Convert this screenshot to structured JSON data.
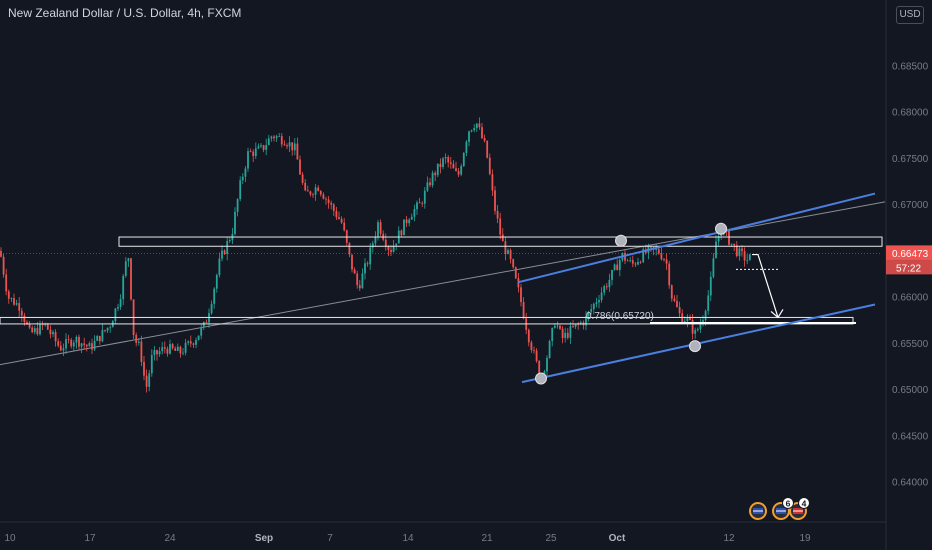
{
  "title": "New Zealand Dollar / U.S. Dollar, 4h, FXCM",
  "currency_button": "USD",
  "price_badge": "0.66473",
  "countdown_badge": "57:22",
  "fib_label": "0.786(0.65720)",
  "event_badges": [
    "6",
    "4"
  ],
  "colors": {
    "up": "#26a69a",
    "down": "#ef5350",
    "channel": "#4a7fe0",
    "background": "#131722"
  },
  "chart_data": {
    "type": "candlestick",
    "symbol": "NZDUSD",
    "timeframe": "4h",
    "y_ticks": [
      "0.68500",
      "0.68000",
      "0.67500",
      "0.67000",
      "0.66500",
      "0.66000",
      "0.65500",
      "0.65000",
      "0.64500",
      "0.64000"
    ],
    "x_ticks": [
      "10",
      "17",
      "24",
      "Sep",
      "7",
      "14",
      "21",
      "25",
      "Oct",
      "12",
      "19"
    ],
    "ylim": [
      0.6345,
      0.6905
    ],
    "last_price": 0.66473,
    "close_path": [
      [
        0,
        0.665
      ],
      [
        8,
        0.66
      ],
      [
        20,
        0.659
      ],
      [
        30,
        0.656
      ],
      [
        45,
        0.657
      ],
      [
        60,
        0.6545
      ],
      [
        75,
        0.6555
      ],
      [
        90,
        0.6545
      ],
      [
        110,
        0.657
      ],
      [
        120,
        0.66
      ],
      [
        128,
        0.665
      ],
      [
        134,
        0.6555
      ],
      [
        140,
        0.6545
      ],
      [
        146,
        0.65
      ],
      [
        152,
        0.6535
      ],
      [
        165,
        0.6545
      ],
      [
        180,
        0.654
      ],
      [
        195,
        0.6555
      ],
      [
        205,
        0.657
      ],
      [
        212,
        0.66
      ],
      [
        220,
        0.664
      ],
      [
        232,
        0.667
      ],
      [
        240,
        0.672
      ],
      [
        248,
        0.6755
      ],
      [
        262,
        0.676
      ],
      [
        272,
        0.6775
      ],
      [
        285,
        0.677
      ],
      [
        295,
        0.676
      ],
      [
        305,
        0.671
      ],
      [
        318,
        0.672
      ],
      [
        330,
        0.67
      ],
      [
        342,
        0.668
      ],
      [
        350,
        0.664
      ],
      [
        358,
        0.661
      ],
      [
        368,
        0.664
      ],
      [
        378,
        0.668
      ],
      [
        390,
        0.665
      ],
      [
        400,
        0.667
      ],
      [
        410,
        0.669
      ],
      [
        420,
        0.67
      ],
      [
        432,
        0.673
      ],
      [
        445,
        0.675
      ],
      [
        458,
        0.673
      ],
      [
        468,
        0.678
      ],
      [
        476,
        0.679
      ],
      [
        486,
        0.676
      ],
      [
        494,
        0.67
      ],
      [
        502,
        0.666
      ],
      [
        510,
        0.664
      ],
      [
        520,
        0.66
      ],
      [
        528,
        0.656
      ],
      [
        536,
        0.653
      ],
      [
        541,
        0.6512
      ],
      [
        548,
        0.654
      ],
      [
        555,
        0.6575
      ],
      [
        562,
        0.6555
      ],
      [
        572,
        0.6565
      ],
      [
        585,
        0.6575
      ],
      [
        598,
        0.66
      ],
      [
        610,
        0.662
      ],
      [
        622,
        0.6645
      ],
      [
        632,
        0.6635
      ],
      [
        645,
        0.6648
      ],
      [
        658,
        0.665
      ],
      [
        666,
        0.664
      ],
      [
        672,
        0.66
      ],
      [
        680,
        0.658
      ],
      [
        688,
        0.6575
      ],
      [
        695,
        0.656
      ],
      [
        702,
        0.6575
      ],
      [
        710,
        0.661
      ],
      [
        716,
        0.666
      ],
      [
        722,
        0.6675
      ],
      [
        730,
        0.666
      ],
      [
        738,
        0.6648
      ],
      [
        748,
        0.664
      ],
      [
        752,
        0.6645
      ]
    ],
    "annotations": {
      "channel_upper": [
        [
          518,
          0.6616
        ],
        [
          875,
          0.6712
        ]
      ],
      "channel_lower": [
        [
          522,
          0.6508
        ],
        [
          875,
          0.6592
        ]
      ],
      "trendline": [
        [
          0,
          0.6527
        ],
        [
          885,
          0.6703
        ]
      ],
      "resistance_zone": [
        0.6655,
        0.6665
      ],
      "support_zone": [
        0.6571,
        0.6578
      ],
      "fib_level": 0.6572,
      "pivots": [
        [
          541,
          0.6512
        ],
        [
          621,
          0.6661
        ],
        [
          695,
          0.6547
        ],
        [
          721,
          0.6674
        ]
      ],
      "projection": [
        [
          752,
          0.6646
        ],
        [
          758,
          0.6646
        ],
        [
          778,
          0.6578
        ]
      ]
    }
  }
}
